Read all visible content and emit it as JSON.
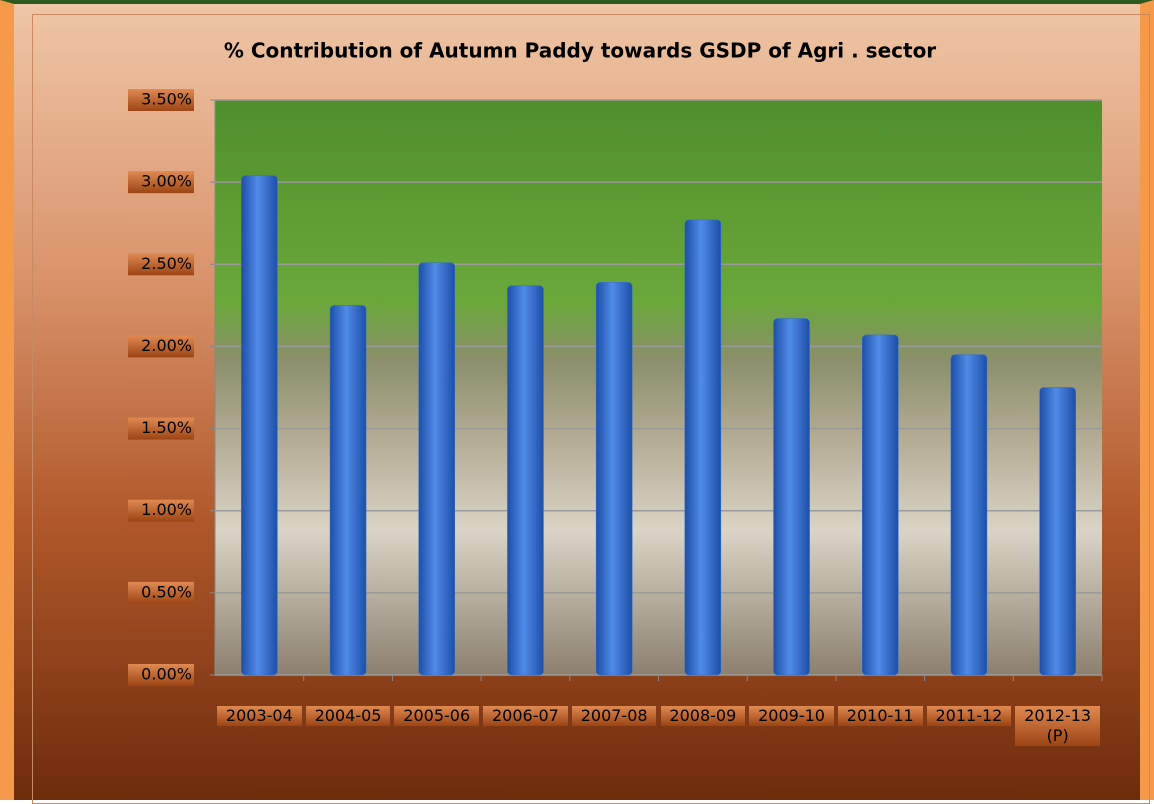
{
  "chart_data": {
    "type": "bar",
    "title": "% Contribution of Autumn Paddy towards GSDP of Agri . sector",
    "categories": [
      "2003-04",
      "2004-05",
      "2005-06",
      "2006-07",
      "2007-08",
      "2008-09",
      "2009-10",
      "2010-11",
      "2011-12",
      "2012-13 (P)"
    ],
    "values": [
      3.04,
      2.25,
      2.51,
      2.37,
      2.39,
      2.77,
      2.17,
      2.07,
      1.95,
      1.75
    ],
    "color": "#2f6fd0",
    "ylim": [
      0,
      3.5
    ],
    "yticks": [
      {
        "value": 0,
        "label": "0.00%"
      },
      {
        "value": 0.5,
        "label": "0.50%"
      },
      {
        "value": 1,
        "label": "1.00%"
      },
      {
        "value": 1.5,
        "label": "1.50%"
      },
      {
        "value": 2,
        "label": "2.00%"
      },
      {
        "value": 2.5,
        "label": "2.50%"
      },
      {
        "value": 3,
        "label": "3.00%"
      },
      {
        "value": 3.5,
        "label": "3.50%"
      }
    ],
    "grid": true
  }
}
